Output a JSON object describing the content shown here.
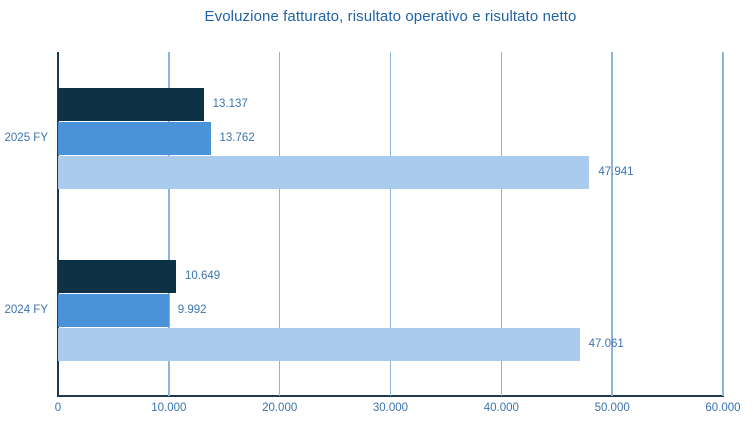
{
  "title": "Evoluzione fatturato, risultato operativo e risultato netto",
  "colors": {
    "background": "#ffffff",
    "title_text": "#2063a7",
    "label_text": "#3b74ae",
    "axis_line": "#1b3a50",
    "gridline": "#8fb4dc",
    "series_dark_navy": "#0e3245",
    "series_medium_blue": "#4a92da",
    "series_light_blue": "#a9cbee"
  },
  "chart_data": {
    "type": "bar",
    "orientation": "horizontal",
    "title": "Evoluzione fatturato, risultato operativo e risultato netto",
    "categories": [
      "2025 FY",
      "2024 FY"
    ],
    "series": [
      {
        "name": "series-1-dark-navy",
        "color": "#0e3245",
        "values": [
          13137,
          10649
        ],
        "labels": [
          "13.137",
          "10.649"
        ]
      },
      {
        "name": "series-2-medium-blue",
        "color": "#4a92da",
        "values": [
          13762,
          9992
        ],
        "labels": [
          "13.762",
          "9.992"
        ]
      },
      {
        "name": "series-3-light-blue",
        "color": "#a9cbee",
        "values": [
          47941,
          47061
        ],
        "labels": [
          "47.941",
          "47.061"
        ]
      }
    ],
    "xlim": [
      0,
      60000
    ],
    "x_ticks": [
      0,
      10000,
      20000,
      30000,
      40000,
      50000,
      60000
    ],
    "x_tick_labels": [
      "0",
      "10.000",
      "20.000",
      "30.000",
      "40.000",
      "50.000",
      "60.000"
    ],
    "grid": "vertical",
    "legend": "none",
    "value_labels": "outside-end"
  }
}
